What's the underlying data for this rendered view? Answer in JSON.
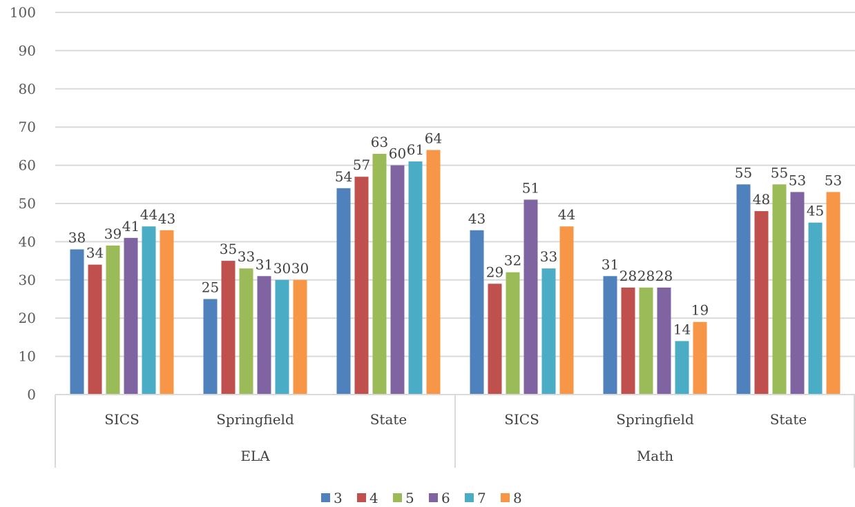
{
  "chart_data": {
    "type": "bar",
    "groups": [
      {
        "label": "ELA",
        "categories": [
          "SICS",
          "Springfield",
          "State"
        ]
      },
      {
        "label": "Math",
        "categories": [
          "SICS",
          "Springfield",
          "State"
        ]
      }
    ],
    "categories": [
      "SICS",
      "Springfield",
      "State",
      "SICS",
      "Springfield",
      "State"
    ],
    "series": [
      {
        "name": "3",
        "color": "#4F81BD",
        "values": [
          38,
          25,
          54,
          43,
          31,
          55
        ]
      },
      {
        "name": "4",
        "color": "#C0504D",
        "values": [
          34,
          35,
          57,
          29,
          28,
          48
        ]
      },
      {
        "name": "5",
        "color": "#9BBB59",
        "values": [
          39,
          33,
          63,
          32,
          28,
          55
        ]
      },
      {
        "name": "6",
        "color": "#8064A2",
        "values": [
          41,
          31,
          60,
          51,
          28,
          53
        ]
      },
      {
        "name": "7",
        "color": "#4BACC6",
        "values": [
          44,
          30,
          61,
          33,
          14,
          45
        ]
      },
      {
        "name": "8",
        "color": "#F79646",
        "values": [
          43,
          30,
          64,
          44,
          19,
          53
        ]
      }
    ],
    "ylim": [
      0,
      100
    ],
    "yticks": [
      "0",
      "10",
      "20",
      "30",
      "40",
      "50",
      "60",
      "70",
      "80",
      "90",
      "100"
    ],
    "grid": true,
    "data_labels": true,
    "legend": "bottom-center"
  }
}
